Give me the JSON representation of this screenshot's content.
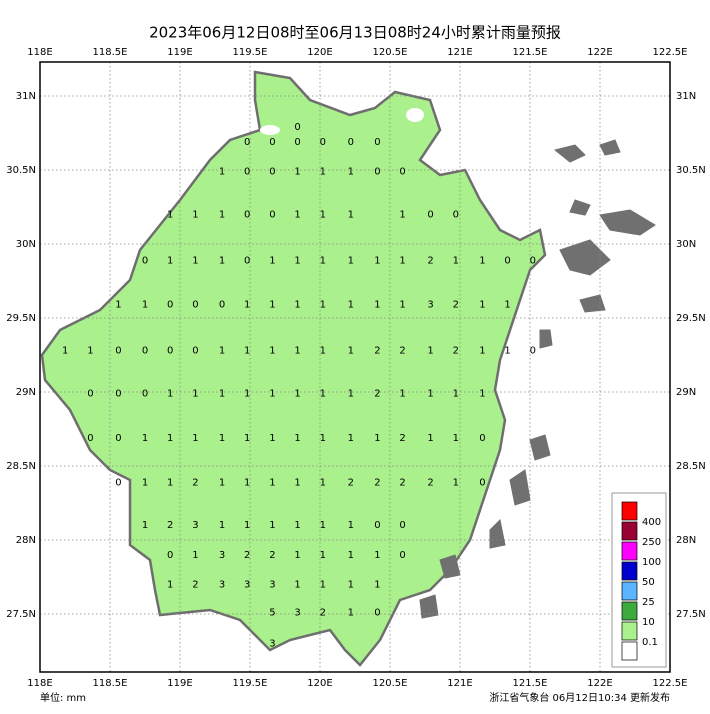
{
  "title": "2023年06月12日08时至06月13日08时24小时累计雨量预报",
  "map": {
    "lon_ticks": [
      {
        "value": 118,
        "label": "118E"
      },
      {
        "value": 118.5,
        "label": "118.5E"
      },
      {
        "value": 119,
        "label": "119E"
      },
      {
        "value": 119.5,
        "label": "119.5E"
      },
      {
        "value": 120,
        "label": "120E"
      },
      {
        "value": 120.5,
        "label": "120.5E"
      },
      {
        "value": 121,
        "label": "121E"
      },
      {
        "value": 121.5,
        "label": "121.5E"
      },
      {
        "value": 122,
        "label": "122E"
      },
      {
        "value": 122.5,
        "label": "122.5E"
      }
    ],
    "lat_ticks": [
      {
        "value": 31,
        "label": "31N"
      },
      {
        "value": 30.5,
        "label": "30.5N"
      },
      {
        "value": 30,
        "label": "30N"
      },
      {
        "value": 29.5,
        "label": "29.5N"
      },
      {
        "value": 29,
        "label": "29N"
      },
      {
        "value": 28.5,
        "label": "28.5N"
      },
      {
        "value": 28,
        "label": "28N"
      },
      {
        "value": 27.5,
        "label": "27.5N"
      }
    ],
    "stations": [
      {
        "lat": 30.79,
        "points": [
          [
            119.84,
            0
          ]
        ]
      },
      {
        "lat": 30.69,
        "points": [
          [
            119.48,
            0
          ],
          [
            119.66,
            0
          ],
          [
            119.84,
            0
          ],
          [
            120.02,
            0
          ],
          [
            120.22,
            0
          ],
          [
            120.41,
            0
          ]
        ]
      },
      {
        "lat": 30.49,
        "points": [
          [
            119.3,
            1
          ],
          [
            119.48,
            0
          ],
          [
            119.66,
            0
          ],
          [
            119.84,
            1
          ],
          [
            120.02,
            1
          ],
          [
            120.22,
            1
          ],
          [
            120.41,
            0
          ],
          [
            120.59,
            0
          ]
        ]
      },
      {
        "lat": 30.2,
        "points": [
          [
            118.93,
            1
          ],
          [
            119.11,
            1
          ],
          [
            119.3,
            1
          ],
          [
            119.48,
            0
          ],
          [
            119.66,
            0
          ],
          [
            119.84,
            1
          ],
          [
            120.02,
            1
          ],
          [
            120.22,
            1
          ],
          [
            120.59,
            1
          ],
          [
            120.79,
            0
          ],
          [
            120.97,
            0
          ]
        ]
      },
      {
        "lat": 29.89,
        "points": [
          [
            118.75,
            0
          ],
          [
            118.93,
            1
          ],
          [
            119.11,
            1
          ],
          [
            119.3,
            1
          ],
          [
            119.48,
            0
          ],
          [
            119.66,
            1
          ],
          [
            119.84,
            1
          ],
          [
            120.02,
            1
          ],
          [
            120.22,
            1
          ],
          [
            120.41,
            1
          ],
          [
            120.59,
            1
          ],
          [
            120.79,
            2
          ],
          [
            120.97,
            1
          ],
          [
            121.16,
            1
          ],
          [
            121.34,
            0
          ],
          [
            121.52,
            0
          ]
        ]
      },
      {
        "lat": 29.59,
        "points": [
          [
            118.56,
            1
          ],
          [
            118.75,
            1
          ],
          [
            118.93,
            0
          ],
          [
            119.11,
            0
          ],
          [
            119.3,
            0
          ],
          [
            119.48,
            1
          ],
          [
            119.66,
            1
          ],
          [
            119.84,
            1
          ],
          [
            120.02,
            1
          ],
          [
            120.22,
            1
          ],
          [
            120.41,
            1
          ],
          [
            120.59,
            1
          ],
          [
            120.79,
            3
          ],
          [
            120.97,
            2
          ],
          [
            121.16,
            1
          ],
          [
            121.34,
            1
          ]
        ]
      },
      {
        "lat": 29.28,
        "points": [
          [
            118.18,
            1
          ],
          [
            118.36,
            1
          ],
          [
            118.56,
            0
          ],
          [
            118.75,
            0
          ],
          [
            118.93,
            0
          ],
          [
            119.11,
            0
          ],
          [
            119.3,
            1
          ],
          [
            119.48,
            1
          ],
          [
            119.66,
            1
          ],
          [
            119.84,
            1
          ],
          [
            120.02,
            1
          ],
          [
            120.22,
            1
          ],
          [
            120.41,
            2
          ],
          [
            120.59,
            2
          ],
          [
            120.79,
            1
          ],
          [
            120.97,
            2
          ],
          [
            121.16,
            1
          ],
          [
            121.34,
            1
          ],
          [
            121.52,
            0
          ]
        ]
      },
      {
        "lat": 28.99,
        "points": [
          [
            118.36,
            0
          ],
          [
            118.56,
            0
          ],
          [
            118.75,
            0
          ],
          [
            118.93,
            1
          ],
          [
            119.11,
            1
          ],
          [
            119.3,
            1
          ],
          [
            119.48,
            1
          ],
          [
            119.66,
            1
          ],
          [
            119.84,
            1
          ],
          [
            120.02,
            1
          ],
          [
            120.22,
            1
          ],
          [
            120.41,
            2
          ],
          [
            120.59,
            1
          ],
          [
            120.79,
            1
          ],
          [
            120.97,
            1
          ],
          [
            121.16,
            1
          ]
        ]
      },
      {
        "lat": 28.69,
        "points": [
          [
            118.36,
            0
          ],
          [
            118.56,
            0
          ],
          [
            118.75,
            1
          ],
          [
            118.93,
            1
          ],
          [
            119.11,
            1
          ],
          [
            119.3,
            1
          ],
          [
            119.48,
            1
          ],
          [
            119.66,
            1
          ],
          [
            119.84,
            1
          ],
          [
            120.02,
            1
          ],
          [
            120.22,
            1
          ],
          [
            120.41,
            1
          ],
          [
            120.59,
            2
          ],
          [
            120.79,
            1
          ],
          [
            120.97,
            1
          ],
          [
            121.16,
            0
          ]
        ]
      },
      {
        "lat": 28.39,
        "points": [
          [
            118.56,
            0
          ],
          [
            118.75,
            1
          ],
          [
            118.93,
            1
          ],
          [
            119.11,
            2
          ],
          [
            119.3,
            1
          ],
          [
            119.48,
            1
          ],
          [
            119.66,
            1
          ],
          [
            119.84,
            1
          ],
          [
            120.02,
            1
          ],
          [
            120.22,
            2
          ],
          [
            120.41,
            2
          ],
          [
            120.59,
            2
          ],
          [
            120.79,
            2
          ],
          [
            120.97,
            1
          ],
          [
            121.16,
            0
          ]
        ]
      },
      {
        "lat": 28.1,
        "points": [
          [
            118.75,
            1
          ],
          [
            118.93,
            2
          ],
          [
            119.11,
            3
          ],
          [
            119.3,
            1
          ],
          [
            119.48,
            1
          ],
          [
            119.66,
            1
          ],
          [
            119.84,
            1
          ],
          [
            120.02,
            1
          ],
          [
            120.22,
            1
          ],
          [
            120.41,
            0
          ],
          [
            120.59,
            0
          ]
        ]
      },
      {
        "lat": 27.9,
        "points": [
          [
            118.93,
            0
          ],
          [
            119.11,
            1
          ],
          [
            119.3,
            3
          ],
          [
            119.48,
            2
          ],
          [
            119.66,
            2
          ],
          [
            119.84,
            1
          ],
          [
            120.02,
            1
          ],
          [
            120.22,
            1
          ],
          [
            120.41,
            1
          ],
          [
            120.59,
            0
          ]
        ]
      },
      {
        "lat": 27.7,
        "points": [
          [
            118.93,
            1
          ],
          [
            119.11,
            2
          ],
          [
            119.3,
            3
          ],
          [
            119.48,
            3
          ],
          [
            119.66,
            3
          ],
          [
            119.84,
            1
          ],
          [
            120.02,
            1
          ],
          [
            120.22,
            1
          ],
          [
            120.41,
            1
          ]
        ]
      },
      {
        "lat": 27.51,
        "points": [
          [
            119.66,
            5
          ],
          [
            119.84,
            3
          ],
          [
            120.02,
            2
          ],
          [
            120.22,
            1
          ],
          [
            120.41,
            0
          ]
        ]
      },
      {
        "lat": 27.3,
        "points": [
          [
            119.66,
            3
          ]
        ]
      }
    ],
    "legend": {
      "colors": [
        "#ff0000",
        "#990033",
        "#ff00ff",
        "#0000cc",
        "#5ab4ff",
        "#3caa3c",
        "#aaf08c",
        "#ffffff"
      ],
      "levels": [
        400,
        250,
        100,
        50,
        25,
        10,
        0.1
      ]
    }
  },
  "footer": {
    "unit": "单位: mm",
    "issuer": "浙江省气象台 06月12日10:34 更新发布"
  }
}
